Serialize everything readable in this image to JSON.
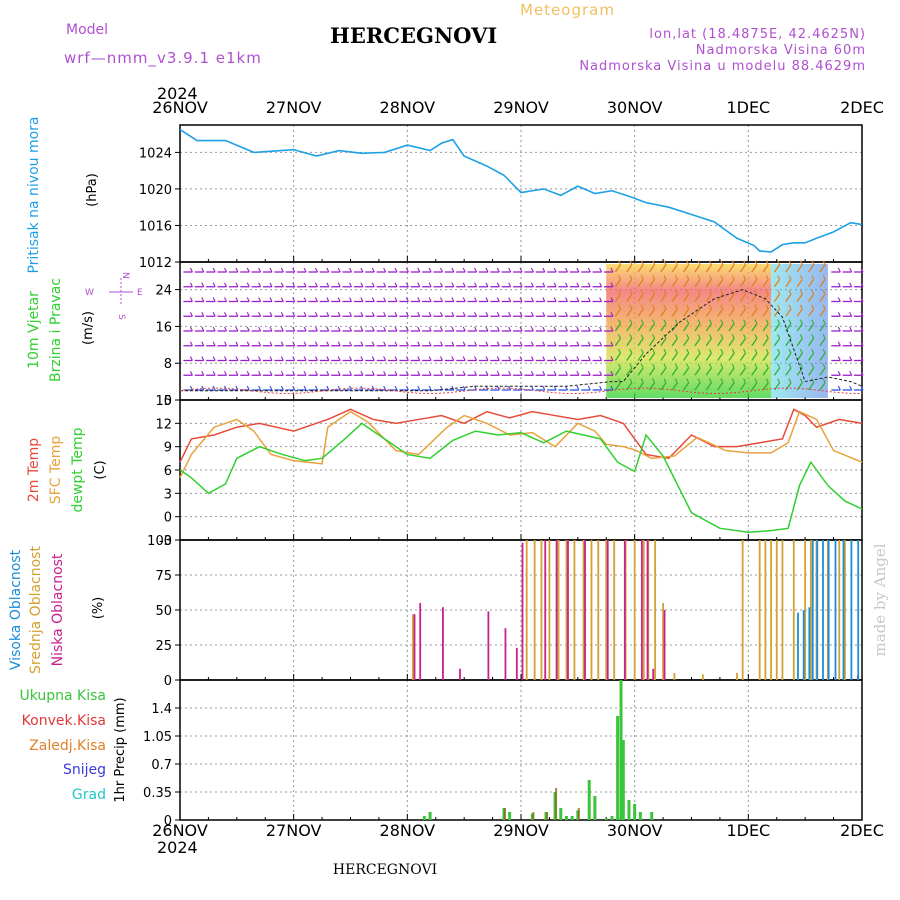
{
  "header": {
    "model_label": "Model",
    "model_name": "wrf—nmm_v3.9.1 e1km",
    "title": "HERCEGNOVI",
    "meteogram_label": "Meteogram",
    "lonlat": "lon,lat (18.4875E, 42.4625N)",
    "elevation": "Nadmorska Visina 60m",
    "model_elevation": "Nadmorska Visina u modelu 88.4629m",
    "footer": "HERCEGNOVI",
    "watermark": "made by Angel"
  },
  "colors": {
    "pressure": "#1ea0e6",
    "temp2m": "#e84a3a",
    "sfc": "#e8a23c",
    "dew": "#2fd02f",
    "high_cloud": "#1a8fd8",
    "mid_cloud": "#d4a130",
    "low_cloud": "#c8208c",
    "precip_total": "#3ac43a",
    "precip_conv": "#e03a3a",
    "precip_grid": "#e0802a",
    "snow": "#3a3ae0",
    "grad": "#20c8c8",
    "wind_barb": "#9a20c8",
    "purple_text": "#b050d0",
    "orange_text": "#f0c060"
  },
  "chart_data": [
    {
      "type": "line",
      "year_label": "2024",
      "x_ticks": [
        "26NOV",
        "27NOV",
        "28NOV",
        "29NOV",
        "30NOV",
        "1DEC",
        "2DEC"
      ],
      "ylabel": "Pritisak na nivou mora",
      "unit": "(hPa)",
      "y_ticks": [
        1012,
        1016,
        1020,
        1024
      ],
      "ylim": [
        1012,
        1027
      ],
      "series": [
        {
          "key": "pressure",
          "days": [
            0,
            0.15,
            0.4,
            0.65,
            1.0,
            1.2,
            1.4,
            1.6,
            1.8,
            2.0,
            2.2,
            2.3,
            2.4,
            2.5,
            2.7,
            2.85,
            3.0,
            3.1,
            3.2,
            3.35,
            3.5,
            3.65,
            3.8,
            3.95,
            4.1,
            4.3,
            4.5,
            4.7,
            4.9,
            5.05,
            5.1,
            5.2,
            5.3,
            5.4,
            5.5,
            5.6,
            5.75,
            5.9,
            6.0
          ],
          "values": [
            1026.5,
            1025.3,
            1025.3,
            1024.0,
            1024.3,
            1023.6,
            1024.2,
            1023.9,
            1024.0,
            1024.8,
            1024.2,
            1025.0,
            1025.4,
            1023.6,
            1022.5,
            1021.5,
            1019.6,
            1019.8,
            1020.0,
            1019.3,
            1020.3,
            1019.5,
            1019.8,
            1019.2,
            1018.5,
            1018.0,
            1017.2,
            1016.4,
            1014.6,
            1013.8,
            1013.2,
            1013.1,
            1013.9,
            1014.1,
            1014.1,
            1014.6,
            1015.3,
            1016.3,
            1016.1
          ]
        }
      ]
    },
    {
      "type": "scatter",
      "ylabel": "10m Vjetar",
      "ylabel2": "Brzina i Pravac",
      "unit": "(m/s)",
      "y_ticks": [
        0,
        8,
        16,
        24
      ],
      "ylim": [
        0,
        30
      ],
      "compass": [
        "N",
        "E",
        "S",
        "W"
      ],
      "wind_speed": {
        "days": [
          0,
          0.3,
          0.6,
          1.0,
          1.4,
          1.8,
          2.2,
          2.6,
          3.0,
          3.4,
          3.8,
          3.9,
          4.1,
          4.4,
          4.7,
          4.95,
          5.15,
          5.3,
          5.5,
          5.7,
          5.9,
          6.0
        ],
        "values": [
          2,
          2,
          2,
          2,
          2,
          2,
          2,
          3,
          3,
          3,
          4,
          4,
          10,
          17,
          22,
          24,
          22,
          18,
          4,
          5,
          4,
          3
        ]
      }
    },
    {
      "type": "line",
      "ylabels": [
        "2m Temp",
        "SFC Temp",
        "dewpt Temp"
      ],
      "unit": "(C)",
      "y_ticks": [
        -3,
        0,
        3,
        6,
        9,
        12,
        15
      ],
      "ylim": [
        -3,
        15
      ],
      "series": [
        {
          "key": "temp2m",
          "days": [
            0,
            0.1,
            0.3,
            0.5,
            0.7,
            1.0,
            1.2,
            1.3,
            1.5,
            1.7,
            1.9,
            2.1,
            2.3,
            2.5,
            2.7,
            2.9,
            3.1,
            3.3,
            3.5,
            3.7,
            3.9,
            4.0,
            4.1,
            4.3,
            4.5,
            4.7,
            4.9,
            5.1,
            5.3,
            5.4,
            5.5,
            5.6,
            5.8,
            6.0
          ],
          "values": [
            7,
            10,
            10.5,
            11.5,
            12,
            11,
            12,
            12.5,
            13.8,
            12.5,
            12,
            12.5,
            13,
            12,
            13.5,
            12.7,
            13.5,
            13,
            12.5,
            13,
            12,
            10,
            8,
            7.5,
            10.5,
            9,
            9,
            9.5,
            10,
            13.8,
            13,
            11.5,
            12.5,
            12
          ]
        },
        {
          "key": "sfc",
          "days": [
            0,
            0.1,
            0.3,
            0.5,
            0.65,
            0.8,
            1.0,
            1.25,
            1.3,
            1.5,
            1.65,
            1.9,
            2.1,
            2.35,
            2.5,
            2.7,
            2.9,
            3.1,
            3.3,
            3.5,
            3.65,
            3.75,
            3.9,
            4.0,
            4.15,
            4.35,
            4.55,
            4.8,
            5.0,
            5.2,
            5.35,
            5.45,
            5.6,
            5.75,
            6.0
          ],
          "values": [
            5,
            8,
            11.5,
            12.5,
            11,
            8,
            7.2,
            6.8,
            11.5,
            13.5,
            12.2,
            8.5,
            8,
            11.5,
            13,
            12,
            10.5,
            10.8,
            9,
            12,
            11,
            9.3,
            9,
            8.6,
            7.5,
            7.8,
            10.2,
            8.5,
            8.2,
            8.2,
            9.5,
            13.5,
            12.5,
            8.5,
            7
          ]
        },
        {
          "key": "dew",
          "days": [
            0,
            0.1,
            0.25,
            0.4,
            0.5,
            0.7,
            0.9,
            1.1,
            1.25,
            1.45,
            1.6,
            1.8,
            2.0,
            2.2,
            2.4,
            2.6,
            2.8,
            3.0,
            3.2,
            3.4,
            3.55,
            3.7,
            3.85,
            4.0,
            4.1,
            4.25,
            4.5,
            4.75,
            5.0,
            5.2,
            5.35,
            5.45,
            5.55,
            5.7,
            5.85,
            6.0
          ],
          "values": [
            6,
            5,
            3,
            4.2,
            7.5,
            9,
            8,
            7.2,
            7.5,
            10,
            12,
            10,
            8,
            7.5,
            9.8,
            11,
            10.5,
            10.8,
            9.5,
            11,
            10.5,
            10,
            7,
            5.8,
            10.5,
            7.8,
            0.5,
            -1.5,
            -2,
            -1.8,
            -1.5,
            4,
            7,
            4,
            2,
            1
          ]
        }
      ]
    },
    {
      "type": "bar",
      "ylabels": [
        "Visoka Oblacnost",
        "Srednja Oblacnost",
        "Niska Oblacnost"
      ],
      "unit": "(%)",
      "y_ticks": [
        0,
        25,
        50,
        75,
        100
      ],
      "ylim": [
        0,
        100
      ],
      "low_cloud": {
        "days": [
          2.05,
          2.1,
          2.3,
          2.45,
          2.7,
          2.85,
          2.95,
          3.0,
          3.2,
          3.3,
          3.4,
          3.55,
          3.75,
          3.9,
          4.05,
          4.1,
          4.15,
          4.25,
          5.95
        ],
        "values": [
          47,
          55,
          52,
          8,
          49,
          37,
          23,
          98,
          100,
          100,
          100,
          100,
          100,
          100,
          100,
          100,
          8,
          50,
          3
        ]
      },
      "mid_cloud": {
        "days": [
          2.05,
          3.05,
          3.12,
          3.18,
          3.25,
          3.33,
          3.4,
          3.47,
          3.55,
          3.62,
          3.68,
          3.75,
          3.82,
          3.92,
          4.0,
          4.08,
          4.12,
          4.18,
          4.25,
          4.35,
          4.6,
          4.9,
          4.95,
          5.1,
          5.15,
          5.2,
          5.25,
          5.3,
          5.4,
          5.5,
          5.55,
          5.6,
          5.7,
          5.8,
          5.85
        ],
        "values": [
          47,
          100,
          100,
          100,
          100,
          100,
          100,
          100,
          100,
          100,
          100,
          100,
          100,
          100,
          100,
          100,
          100,
          100,
          55,
          5,
          4,
          5,
          100,
          100,
          100,
          100,
          100,
          100,
          100,
          100,
          100,
          100,
          100,
          100,
          100
        ]
      },
      "high_cloud": {
        "days": [
          5.45,
          5.5,
          5.55,
          5.58,
          5.62,
          5.67,
          5.72,
          5.78,
          5.85,
          5.92,
          5.98
        ],
        "values": [
          48,
          50,
          52,
          100,
          100,
          100,
          100,
          100,
          100,
          100,
          100
        ]
      }
    },
    {
      "type": "bar",
      "ylabels": [
        "Ukupna Kisa",
        "Konvek.Kisa",
        "Zaledj.Kisa",
        "Snijeg",
        "Grad"
      ],
      "unit": "1hr Precip (mm)",
      "y_ticks": [
        0,
        0.35,
        0.7,
        1.05,
        1.4
      ],
      "ylim": [
        0,
        1.75
      ],
      "total": {
        "days": [
          2.15,
          2.2,
          2.85,
          2.9,
          3.1,
          3.22,
          3.3,
          3.35,
          3.4,
          3.45,
          3.5,
          3.6,
          3.65,
          3.75,
          3.8,
          3.85,
          3.88,
          3.9,
          3.95,
          4.0,
          4.05,
          4.15
        ],
        "values": [
          0.05,
          0.1,
          0.15,
          0.1,
          0.08,
          0.1,
          0.35,
          0.15,
          0.05,
          0.05,
          0.12,
          0.5,
          0.3,
          0.02,
          0.05,
          1.3,
          1.75,
          1.0,
          0.25,
          0.2,
          0.1,
          0.1
        ]
      },
      "conv": {
        "days": [
          2.85,
          3.1,
          3.22,
          3.3,
          3.5
        ],
        "values": [
          0.15,
          0.1,
          0.1,
          0.4,
          0.15
        ]
      }
    }
  ]
}
